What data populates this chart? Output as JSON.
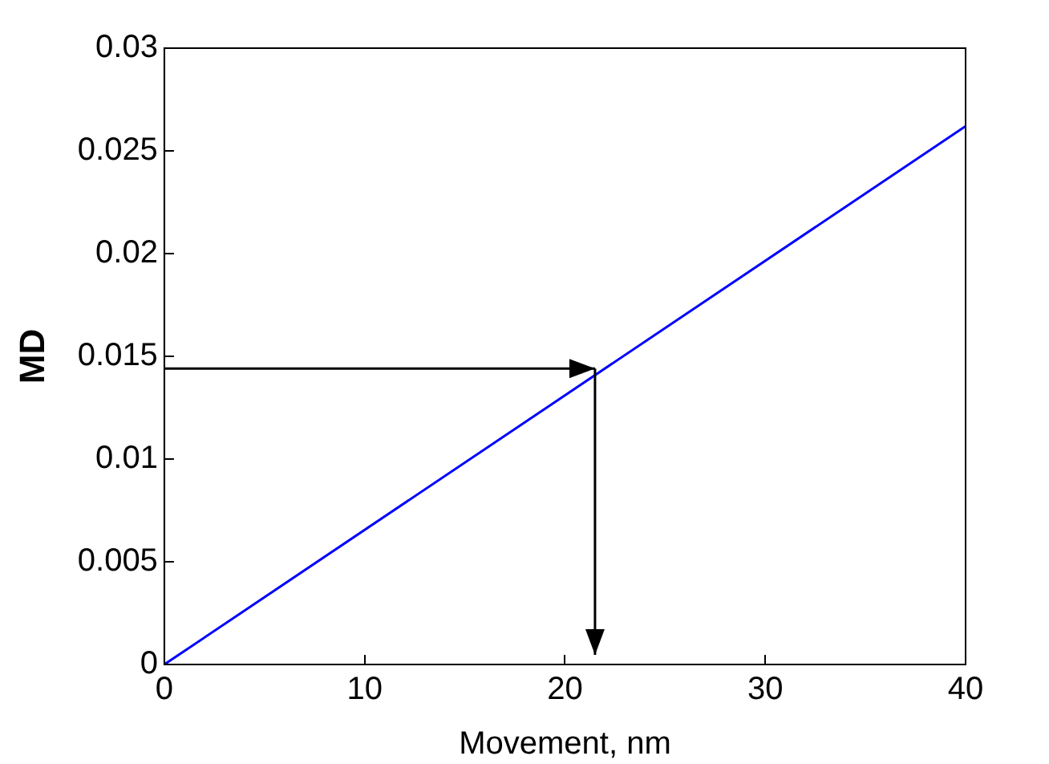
{
  "chart_data": {
    "type": "line",
    "xlabel": "Movement, nm",
    "ylabel": "MD",
    "x": [
      0,
      40
    ],
    "series": [
      {
        "color": "#0000ff",
        "values": [
          0,
          0.0262
        ]
      }
    ],
    "xlim": [
      0,
      40
    ],
    "xticks": [
      0,
      10,
      20,
      30,
      40
    ],
    "ylim": [
      0,
      0.03
    ],
    "yticks": [
      0,
      0.005,
      0.01,
      0.015,
      0.02,
      0.025,
      0.03
    ],
    "ref_lines": [
      {
        "axis": "y",
        "value": 0.0144,
        "color": "#000000"
      },
      {
        "axis": "x",
        "value": 21.5,
        "color": "#000000"
      }
    ],
    "grid": false,
    "legend": false,
    "marker": "none",
    "line_style": "solid"
  }
}
